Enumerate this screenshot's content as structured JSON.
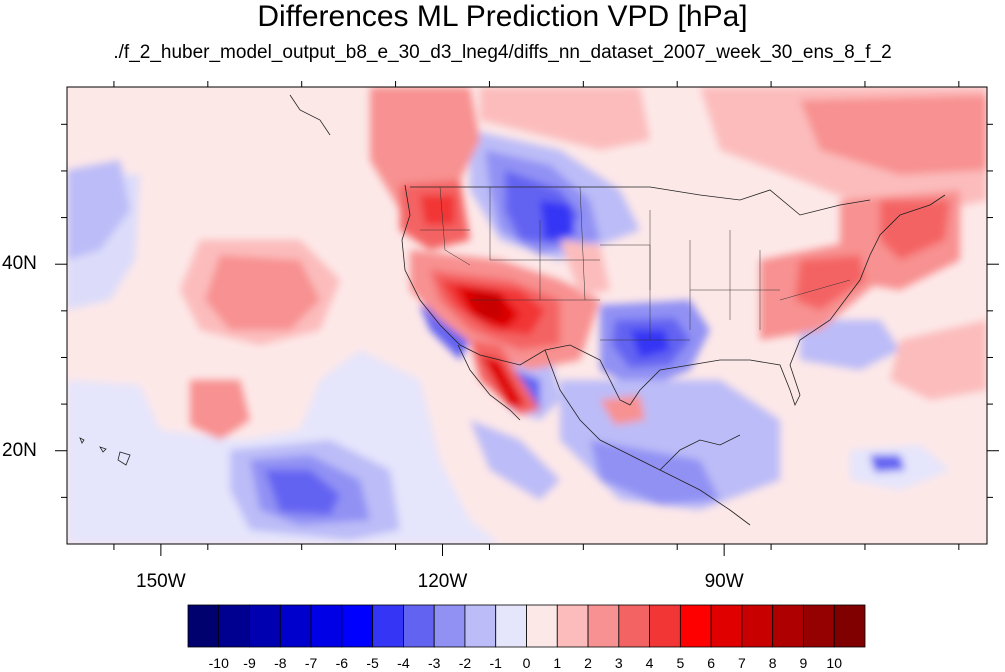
{
  "title": "Differences ML Prediction VPD [hPa]",
  "subtitle": "./f_2_huber_model_output_b8_e_30_d3_lneg4/diffs_nn_dataset_2007_week_30_ens_8_f_2",
  "map": {
    "lon_range": [
      -160,
      -62
    ],
    "lat_range": [
      10,
      59
    ],
    "lat_labels": [
      "40N",
      "20N"
    ],
    "lat_values": [
      40,
      20
    ],
    "lon_labels": [
      "150W",
      "120W",
      "90W"
    ],
    "lon_values": [
      -150,
      -120,
      -90
    ]
  },
  "colorbar": {
    "labels": [
      "-10",
      "-9",
      "-8",
      "-7",
      "-6",
      "-5",
      "-4",
      "-3",
      "-2",
      "-1",
      "0",
      "1",
      "2",
      "3",
      "4",
      "5",
      "6",
      "7",
      "8",
      "9",
      "10"
    ],
    "colors": [
      "#00006e",
      "#000090",
      "#0000b0",
      "#0000cc",
      "#0000e6",
      "#0000ff",
      "#3535f5",
      "#6363f2",
      "#9191f4",
      "#bcbcf8",
      "#e5e5fc",
      "#fde8e8",
      "#fcbcbc",
      "#f89191",
      "#f46363",
      "#f23535",
      "#ff0000",
      "#e00000",
      "#c80000",
      "#ae0000",
      "#950000",
      "#800000"
    ]
  }
}
